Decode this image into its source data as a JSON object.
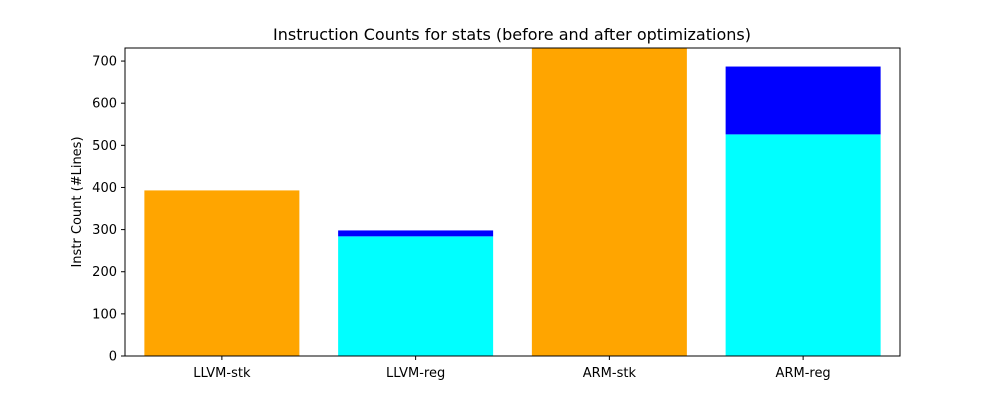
{
  "chart_data": {
    "type": "bar",
    "stacked": true,
    "title": "Instruction Counts for stats (before and after optimizations)",
    "xlabel": "",
    "ylabel": "Instr Count (#Lines)",
    "categories": [
      "LLVM-stk",
      "LLVM-reg",
      "ARM-stk",
      "ARM-reg"
    ],
    "ylim": [
      0,
      731
    ],
    "yticks": [
      0,
      100,
      200,
      300,
      400,
      500,
      600,
      700
    ],
    "grid": false,
    "legend": "none",
    "bars": [
      {
        "category": "LLVM-stk",
        "segments": [
          {
            "value": 393,
            "color": "#ffa500"
          }
        ]
      },
      {
        "category": "LLVM-reg",
        "segments": [
          {
            "value": 284,
            "color": "#00ffff"
          },
          {
            "value": 14,
            "color": "#0000ff"
          }
        ]
      },
      {
        "category": "ARM-stk",
        "segments": [
          {
            "value": 731,
            "color": "#ffa500"
          }
        ]
      },
      {
        "category": "ARM-reg",
        "segments": [
          {
            "value": 526,
            "color": "#00ffff"
          },
          {
            "value": 161,
            "color": "#0000ff"
          }
        ]
      }
    ]
  }
}
